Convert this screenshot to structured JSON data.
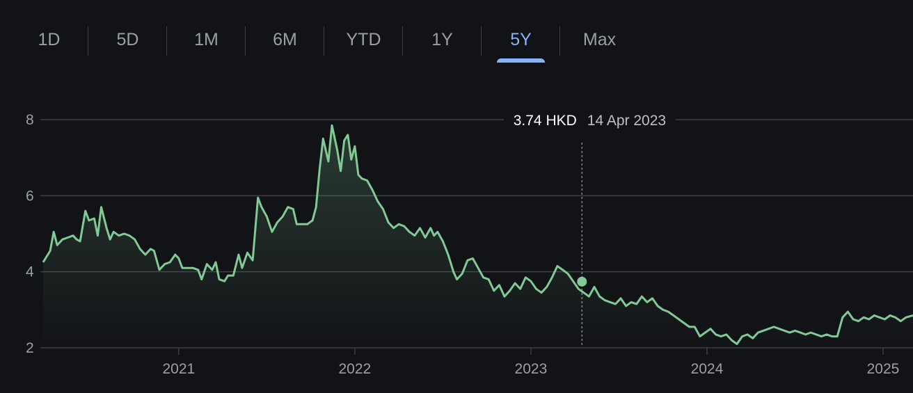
{
  "range_tabs": [
    {
      "label": "1D",
      "active": false
    },
    {
      "label": "5D",
      "active": false
    },
    {
      "label": "1M",
      "active": false
    },
    {
      "label": "6M",
      "active": false
    },
    {
      "label": "YTD",
      "active": false
    },
    {
      "label": "1Y",
      "active": false
    },
    {
      "label": "5Y",
      "active": true
    },
    {
      "label": "Max",
      "active": false
    }
  ],
  "tooltip": {
    "price": "3.74 HKD",
    "date": "14 Apr 2023"
  },
  "colors": {
    "background": "#121317",
    "line": "#81c995",
    "active_tab": "#8ab4f8",
    "grid": "#3c4043"
  },
  "chart_data": {
    "type": "area",
    "currency": "HKD",
    "ylim": [
      2,
      8
    ],
    "xlim": [
      2020.23,
      2025.17
    ],
    "y_ticks": [
      {
        "value": 2,
        "label": "2"
      },
      {
        "value": 4,
        "label": "4"
      },
      {
        "value": 6,
        "label": "6"
      },
      {
        "value": 8,
        "label": "8"
      }
    ],
    "x_ticks": [
      {
        "value": 2021,
        "label": "2021"
      },
      {
        "value": 2022,
        "label": "2022"
      },
      {
        "value": 2023,
        "label": "2023"
      },
      {
        "value": 2024,
        "label": "2024"
      },
      {
        "value": 2025,
        "label": "2025"
      }
    ],
    "grid": true,
    "hover": {
      "x": 2023.29,
      "y": 3.74
    },
    "series": [
      {
        "points": [
          [
            2020.23,
            4.25
          ],
          [
            2020.27,
            4.55
          ],
          [
            2020.29,
            5.05
          ],
          [
            2020.31,
            4.7
          ],
          [
            2020.34,
            4.85
          ],
          [
            2020.37,
            4.9
          ],
          [
            2020.4,
            4.95
          ],
          [
            2020.42,
            4.85
          ],
          [
            2020.44,
            4.8
          ],
          [
            2020.47,
            5.6
          ],
          [
            2020.49,
            5.35
          ],
          [
            2020.52,
            5.4
          ],
          [
            2020.54,
            4.95
          ],
          [
            2020.56,
            5.7
          ],
          [
            2020.59,
            5.15
          ],
          [
            2020.61,
            4.85
          ],
          [
            2020.63,
            5.05
          ],
          [
            2020.66,
            4.95
          ],
          [
            2020.69,
            5.0
          ],
          [
            2020.72,
            4.95
          ],
          [
            2020.75,
            4.85
          ],
          [
            2020.78,
            4.6
          ],
          [
            2020.81,
            4.45
          ],
          [
            2020.84,
            4.6
          ],
          [
            2020.86,
            4.55
          ],
          [
            2020.89,
            4.05
          ],
          [
            2020.92,
            4.2
          ],
          [
            2020.95,
            4.25
          ],
          [
            2020.98,
            4.45
          ],
          [
            2021.0,
            4.35
          ],
          [
            2021.02,
            4.1
          ],
          [
            2021.05,
            4.1
          ],
          [
            2021.08,
            4.1
          ],
          [
            2021.11,
            4.05
          ],
          [
            2021.13,
            3.8
          ],
          [
            2021.16,
            4.2
          ],
          [
            2021.19,
            4.05
          ],
          [
            2021.21,
            4.25
          ],
          [
            2021.23,
            3.8
          ],
          [
            2021.26,
            3.75
          ],
          [
            2021.28,
            3.9
          ],
          [
            2021.31,
            3.9
          ],
          [
            2021.34,
            4.45
          ],
          [
            2021.36,
            4.1
          ],
          [
            2021.39,
            4.5
          ],
          [
            2021.42,
            4.3
          ],
          [
            2021.45,
            5.95
          ],
          [
            2021.47,
            5.7
          ],
          [
            2021.5,
            5.45
          ],
          [
            2021.53,
            5.05
          ],
          [
            2021.56,
            5.3
          ],
          [
            2021.59,
            5.45
          ],
          [
            2021.62,
            5.7
          ],
          [
            2021.65,
            5.65
          ],
          [
            2021.67,
            5.25
          ],
          [
            2021.7,
            5.25
          ],
          [
            2021.73,
            5.25
          ],
          [
            2021.76,
            5.35
          ],
          [
            2021.78,
            5.7
          ],
          [
            2021.8,
            6.7
          ],
          [
            2021.82,
            7.5
          ],
          [
            2021.85,
            6.9
          ],
          [
            2021.87,
            7.85
          ],
          [
            2021.9,
            7.2
          ],
          [
            2021.92,
            6.65
          ],
          [
            2021.94,
            7.45
          ],
          [
            2021.96,
            7.6
          ],
          [
            2021.98,
            6.95
          ],
          [
            2022.0,
            7.3
          ],
          [
            2022.02,
            6.55
          ],
          [
            2022.04,
            6.45
          ],
          [
            2022.07,
            6.4
          ],
          [
            2022.1,
            6.15
          ],
          [
            2022.13,
            5.85
          ],
          [
            2022.16,
            5.65
          ],
          [
            2022.19,
            5.3
          ],
          [
            2022.22,
            5.15
          ],
          [
            2022.25,
            5.25
          ],
          [
            2022.28,
            5.2
          ],
          [
            2022.31,
            5.05
          ],
          [
            2022.34,
            4.95
          ],
          [
            2022.37,
            5.15
          ],
          [
            2022.4,
            4.9
          ],
          [
            2022.43,
            5.15
          ],
          [
            2022.45,
            4.95
          ],
          [
            2022.47,
            5.05
          ],
          [
            2022.5,
            4.8
          ],
          [
            2022.53,
            4.45
          ],
          [
            2022.56,
            4.0
          ],
          [
            2022.58,
            3.8
          ],
          [
            2022.61,
            3.95
          ],
          [
            2022.64,
            4.3
          ],
          [
            2022.67,
            4.35
          ],
          [
            2022.7,
            4.1
          ],
          [
            2022.73,
            3.85
          ],
          [
            2022.76,
            3.8
          ],
          [
            2022.79,
            3.5
          ],
          [
            2022.82,
            3.65
          ],
          [
            2022.85,
            3.35
          ],
          [
            2022.88,
            3.5
          ],
          [
            2022.91,
            3.7
          ],
          [
            2022.94,
            3.55
          ],
          [
            2022.97,
            3.85
          ],
          [
            2023.0,
            3.75
          ],
          [
            2023.03,
            3.55
          ],
          [
            2023.06,
            3.45
          ],
          [
            2023.09,
            3.6
          ],
          [
            2023.12,
            3.85
          ],
          [
            2023.15,
            4.15
          ],
          [
            2023.18,
            4.05
          ],
          [
            2023.21,
            3.95
          ],
          [
            2023.24,
            3.75
          ],
          [
            2023.27,
            3.55
          ],
          [
            2023.3,
            3.45
          ],
          [
            2023.33,
            3.35
          ],
          [
            2023.36,
            3.6
          ],
          [
            2023.39,
            3.35
          ],
          [
            2023.42,
            3.25
          ],
          [
            2023.45,
            3.2
          ],
          [
            2023.48,
            3.15
          ],
          [
            2023.51,
            3.3
          ],
          [
            2023.54,
            3.1
          ],
          [
            2023.57,
            3.2
          ],
          [
            2023.6,
            3.15
          ],
          [
            2023.63,
            3.35
          ],
          [
            2023.66,
            3.2
          ],
          [
            2023.69,
            3.3
          ],
          [
            2023.72,
            3.1
          ],
          [
            2023.75,
            3.0
          ],
          [
            2023.78,
            2.95
          ],
          [
            2023.81,
            2.85
          ],
          [
            2023.84,
            2.75
          ],
          [
            2023.87,
            2.65
          ],
          [
            2023.9,
            2.55
          ],
          [
            2023.93,
            2.55
          ],
          [
            2023.96,
            2.3
          ],
          [
            2023.99,
            2.4
          ],
          [
            2024.02,
            2.5
          ],
          [
            2024.05,
            2.35
          ],
          [
            2024.08,
            2.3
          ],
          [
            2024.11,
            2.35
          ],
          [
            2024.14,
            2.2
          ],
          [
            2024.17,
            2.1
          ],
          [
            2024.2,
            2.3
          ],
          [
            2024.23,
            2.35
          ],
          [
            2024.26,
            2.25
          ],
          [
            2024.29,
            2.4
          ],
          [
            2024.32,
            2.45
          ],
          [
            2024.35,
            2.5
          ],
          [
            2024.38,
            2.55
          ],
          [
            2024.41,
            2.5
          ],
          [
            2024.44,
            2.45
          ],
          [
            2024.47,
            2.4
          ],
          [
            2024.5,
            2.45
          ],
          [
            2024.53,
            2.4
          ],
          [
            2024.56,
            2.35
          ],
          [
            2024.59,
            2.4
          ],
          [
            2024.62,
            2.35
          ],
          [
            2024.65,
            2.3
          ],
          [
            2024.68,
            2.35
          ],
          [
            2024.71,
            2.3
          ],
          [
            2024.74,
            2.3
          ],
          [
            2024.77,
            2.8
          ],
          [
            2024.8,
            2.95
          ],
          [
            2024.83,
            2.75
          ],
          [
            2024.86,
            2.7
          ],
          [
            2024.89,
            2.8
          ],
          [
            2024.92,
            2.75
          ],
          [
            2024.95,
            2.85
          ],
          [
            2024.98,
            2.8
          ],
          [
            2025.01,
            2.75
          ],
          [
            2025.04,
            2.85
          ],
          [
            2025.07,
            2.8
          ],
          [
            2025.1,
            2.7
          ],
          [
            2025.13,
            2.8
          ],
          [
            2025.17,
            2.85
          ]
        ]
      }
    ]
  }
}
